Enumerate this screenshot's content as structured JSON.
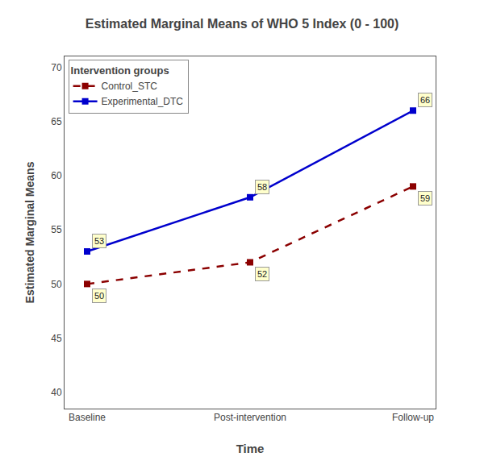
{
  "chart_data": {
    "type": "line",
    "title": "Estimated Marginal Means of WHO 5 Index (0 - 100)",
    "xlabel": "Time",
    "ylabel": "Estimated Marginal Means",
    "categories": [
      "Baseline",
      "Post-intervention",
      "Follow-up"
    ],
    "series": [
      {
        "name": "Control_STC",
        "color": "#8B0000",
        "values": [
          50,
          52,
          59
        ],
        "marker": "square",
        "line_style": "dashed"
      },
      {
        "name": "Experimental_DTC",
        "color": "#0000CD",
        "values": [
          53,
          58,
          66
        ],
        "marker": "square",
        "line_style": "solid"
      }
    ],
    "ylim": [
      38.5,
      71
    ],
    "yticks": [
      40,
      45,
      50,
      55,
      60,
      65,
      70
    ],
    "grid": false,
    "legend": "upper left",
    "legend_title": "Intervention groups",
    "data_labels": true
  }
}
